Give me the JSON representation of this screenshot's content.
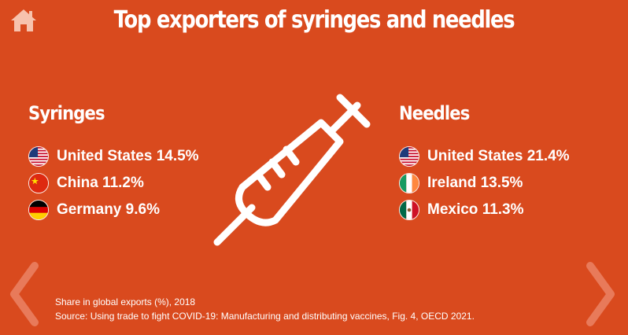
{
  "header": {
    "title": "Top exporters of syringes and needles"
  },
  "syringes": {
    "heading": "Syringes",
    "items": [
      {
        "flag": "us-flag-icon",
        "text": "United States 14.5%",
        "country": "United States",
        "share": 14.5
      },
      {
        "flag": "china-flag-icon",
        "text": "China 11.2%",
        "country": "China",
        "share": 11.2
      },
      {
        "flag": "germany-flag-icon",
        "text": "Germany 9.6%",
        "country": "Germany",
        "share": 9.6
      }
    ]
  },
  "needles": {
    "heading": "Needles",
    "items": [
      {
        "flag": "us-flag-icon",
        "text": "United States 21.4%",
        "country": "United States",
        "share": 21.4
      },
      {
        "flag": "ireland-flag-icon",
        "text": "Ireland 13.5%",
        "country": "Ireland",
        "share": 13.5
      },
      {
        "flag": "mexico-flag-icon",
        "text": "Mexico 11.3%",
        "country": "Mexico",
        "share": 11.3
      }
    ]
  },
  "footer": {
    "note": "Share in global exports (%), 2018",
    "source": "Source: Using trade to fight COVID-19: Manufacturing and distributing vaccines, Fig. 4, OECD 2021."
  },
  "icons": {
    "home": "home-icon",
    "syringe": "syringe-icon",
    "prev": "chevron-left-icon",
    "next": "chevron-right-icon"
  },
  "colors": {
    "background": "#d94a1e",
    "text": "#ffffff",
    "nav_arrow": "#e87a5a"
  }
}
